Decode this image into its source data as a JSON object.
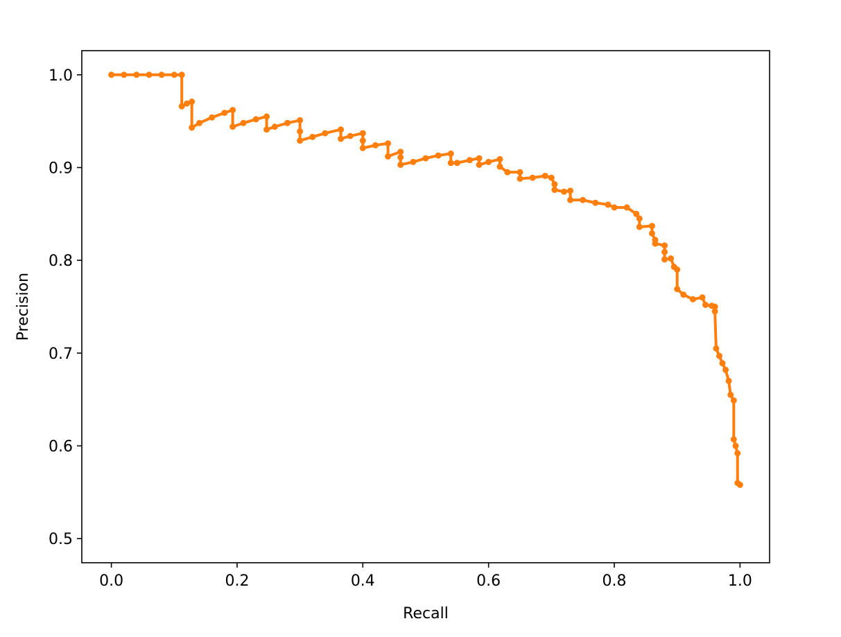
{
  "chart_data": {
    "type": "line",
    "title": "",
    "xlabel": "Recall",
    "ylabel": "Precision",
    "xlim": [
      -0.047,
      1.047
    ],
    "ylim": [
      0.474,
      1.026
    ],
    "xticks": [
      0.0,
      0.2,
      0.4,
      0.6,
      0.8,
      1.0
    ],
    "xtick_labels": [
      "0.0",
      "0.2",
      "0.4",
      "0.6",
      "0.8",
      "1.0"
    ],
    "yticks": [
      0.5,
      0.6,
      0.7,
      0.8,
      0.9,
      1.0
    ],
    "ytick_labels": [
      "0.5",
      "0.6",
      "0.7",
      "0.8",
      "0.9",
      "1.0"
    ],
    "grid": false,
    "legend": null,
    "series": [
      {
        "color": "#ff7f0e",
        "marker": "dot",
        "x": [
          0.0,
          0.02,
          0.04,
          0.06,
          0.08,
          0.1,
          0.112,
          0.112,
          0.12,
          0.128,
          0.128,
          0.14,
          0.16,
          0.18,
          0.193,
          0.193,
          0.21,
          0.23,
          0.247,
          0.247,
          0.26,
          0.28,
          0.3,
          0.3,
          0.3,
          0.32,
          0.34,
          0.365,
          0.365,
          0.38,
          0.4,
          0.4,
          0.4,
          0.42,
          0.44,
          0.44,
          0.46,
          0.46,
          0.46,
          0.48,
          0.5,
          0.52,
          0.54,
          0.54,
          0.55,
          0.57,
          0.585,
          0.585,
          0.6,
          0.618,
          0.618,
          0.63,
          0.65,
          0.65,
          0.67,
          0.69,
          0.7,
          0.705,
          0.705,
          0.72,
          0.73,
          0.73,
          0.75,
          0.77,
          0.79,
          0.8,
          0.82,
          0.835,
          0.84,
          0.84,
          0.86,
          0.86,
          0.865,
          0.865,
          0.88,
          0.88,
          0.88,
          0.89,
          0.895,
          0.9,
          0.9,
          0.91,
          0.925,
          0.94,
          0.945,
          0.955,
          0.96,
          0.96,
          0.962,
          0.967,
          0.972,
          0.977,
          0.982,
          0.985,
          0.99,
          0.99,
          0.993,
          0.996,
          0.996,
          1.0
        ],
        "y": [
          1.0,
          1.0,
          1.0,
          1.0,
          1.0,
          1.0,
          1.0,
          0.966,
          0.969,
          0.971,
          0.943,
          0.948,
          0.954,
          0.959,
          0.962,
          0.944,
          0.948,
          0.952,
          0.955,
          0.941,
          0.944,
          0.948,
          0.951,
          0.939,
          0.929,
          0.933,
          0.937,
          0.941,
          0.931,
          0.934,
          0.937,
          0.929,
          0.921,
          0.924,
          0.926,
          0.912,
          0.917,
          0.911,
          0.903,
          0.906,
          0.91,
          0.913,
          0.915,
          0.905,
          0.905,
          0.908,
          0.91,
          0.903,
          0.906,
          0.909,
          0.901,
          0.895,
          0.895,
          0.888,
          0.889,
          0.891,
          0.889,
          0.882,
          0.876,
          0.874,
          0.875,
          0.865,
          0.865,
          0.862,
          0.86,
          0.857,
          0.857,
          0.85,
          0.845,
          0.836,
          0.837,
          0.829,
          0.822,
          0.818,
          0.816,
          0.809,
          0.801,
          0.802,
          0.793,
          0.79,
          0.769,
          0.763,
          0.758,
          0.76,
          0.752,
          0.751,
          0.75,
          0.745,
          0.705,
          0.697,
          0.689,
          0.682,
          0.67,
          0.655,
          0.649,
          0.607,
          0.6,
          0.592,
          0.56,
          0.558
        ]
      }
    ]
  }
}
